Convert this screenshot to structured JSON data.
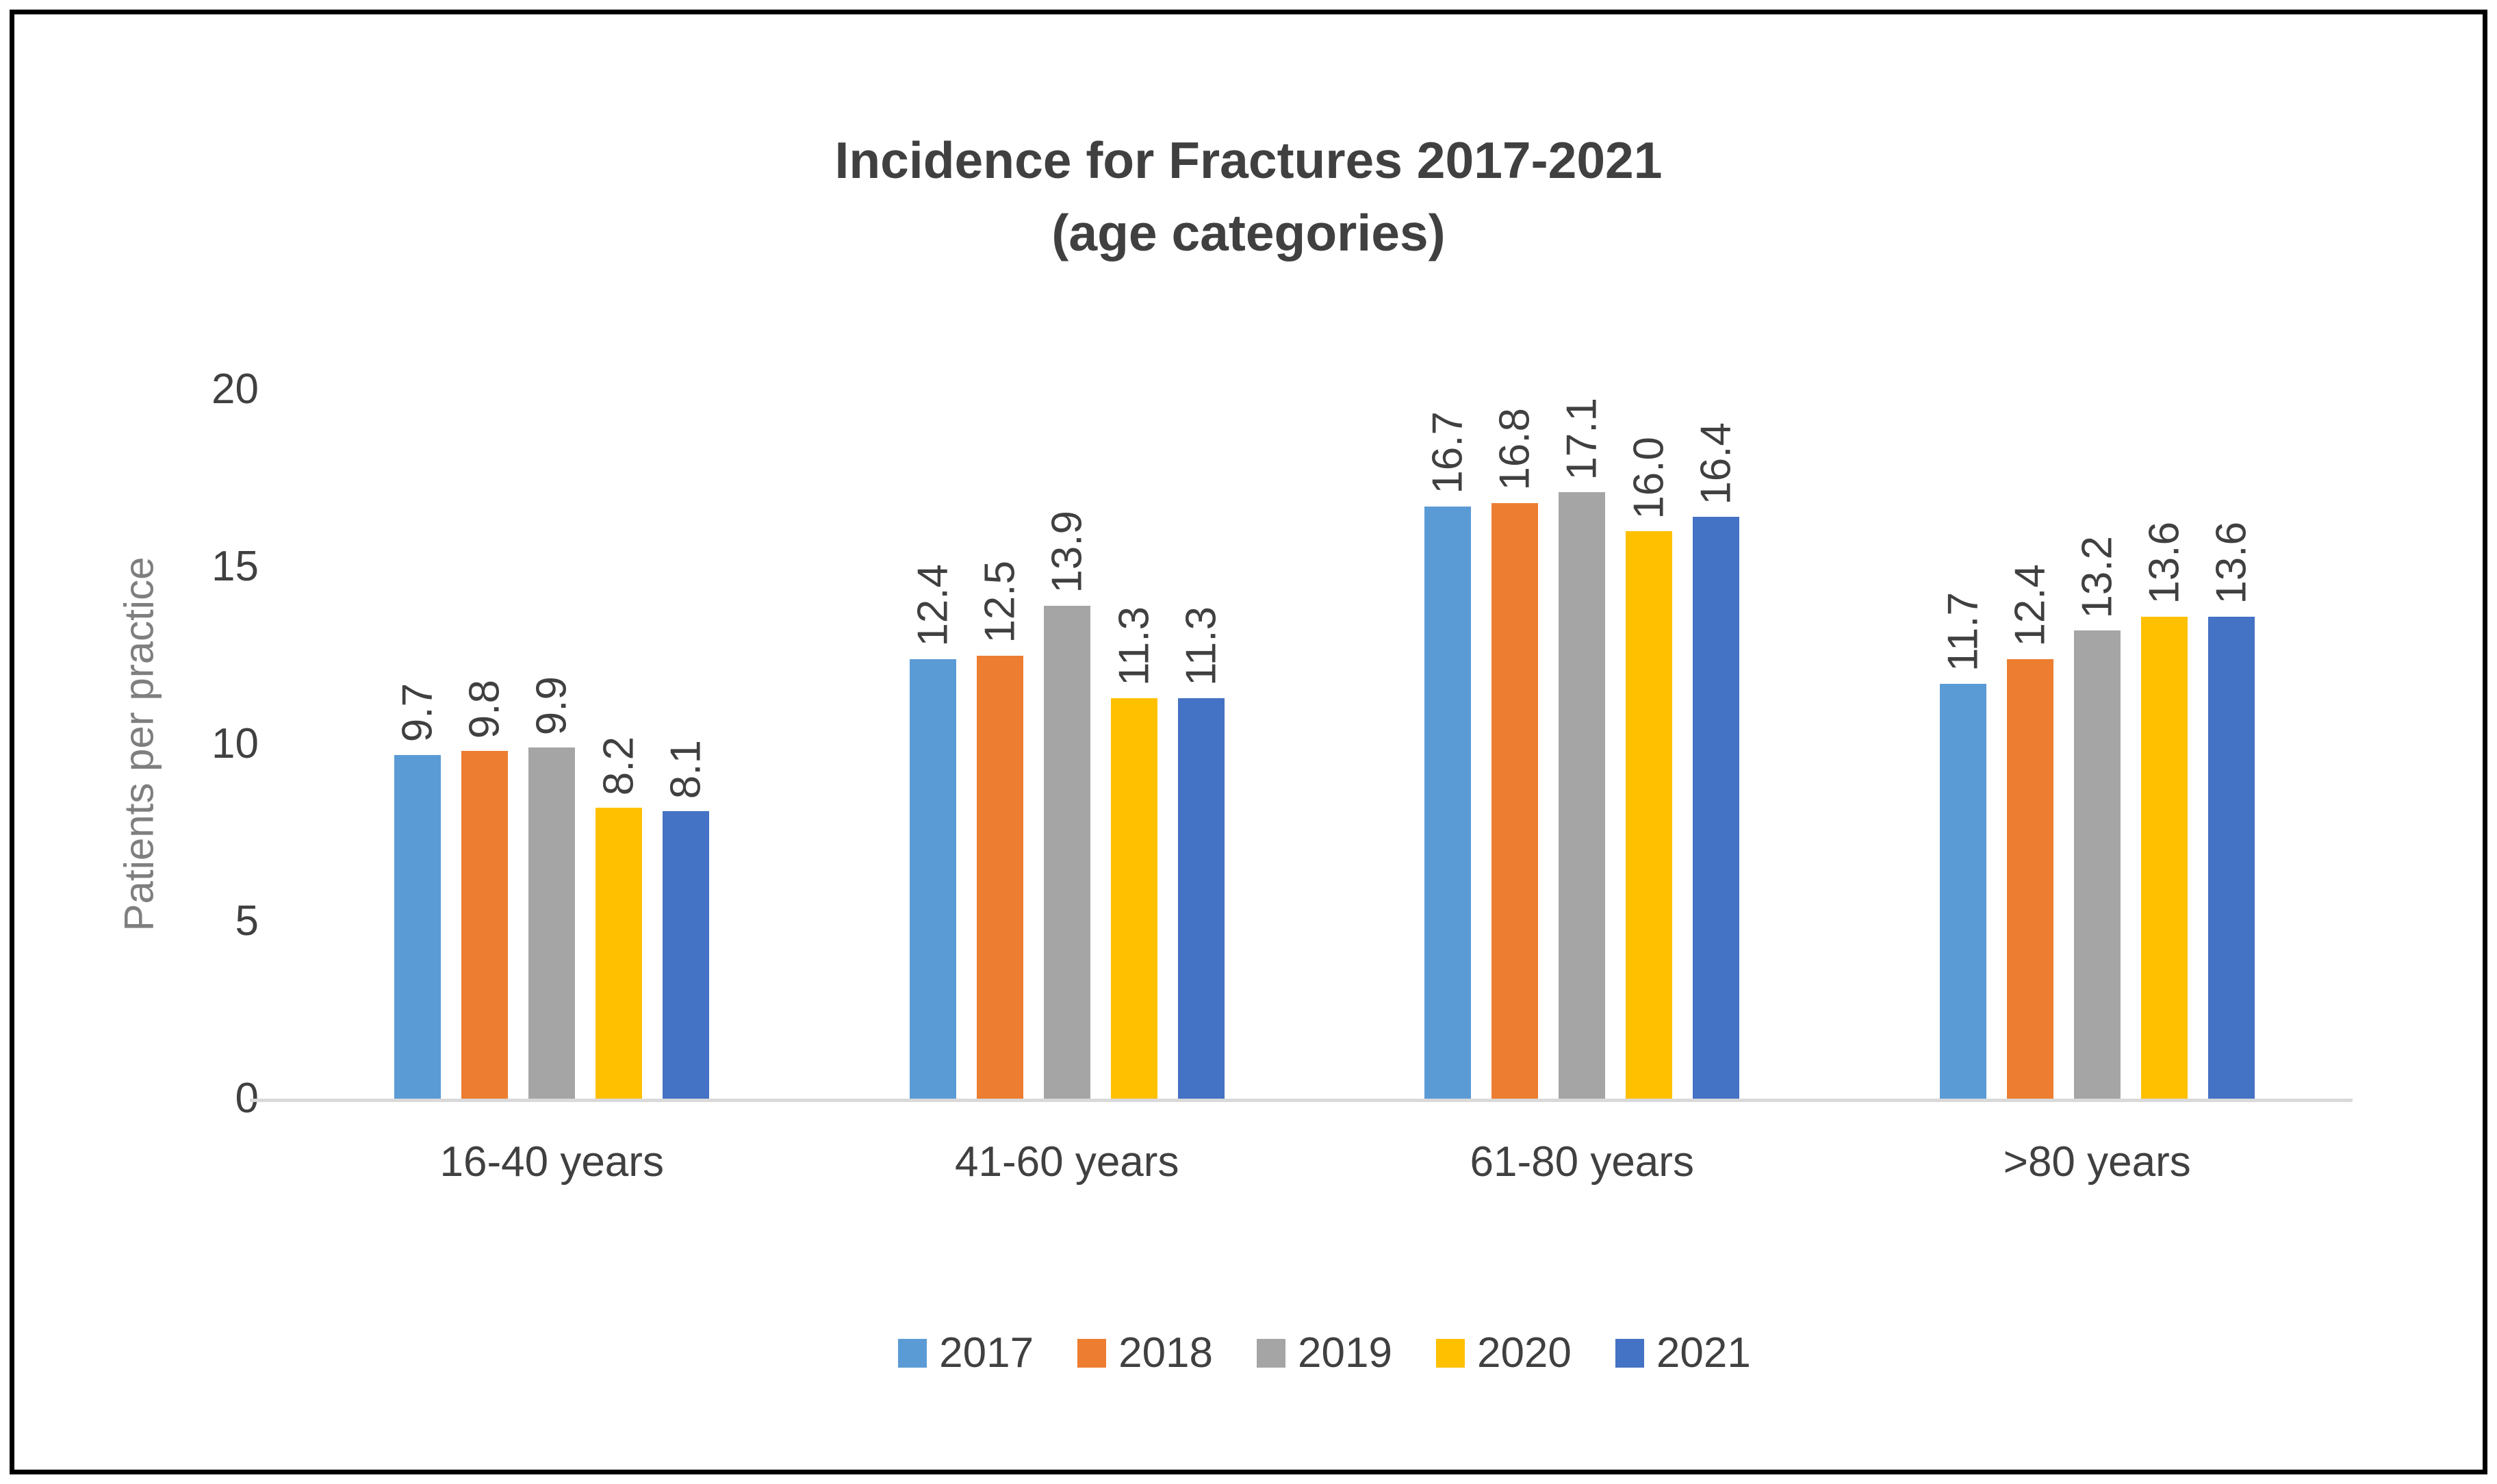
{
  "title": {
    "line1": "Incidence for Fractures 2017-2021",
    "line2": "(age categories)"
  },
  "chart_data": {
    "type": "bar",
    "categories": [
      "16-40 years",
      "41-60 years",
      "61-80 years",
      ">80 years"
    ],
    "series": [
      {
        "name": "2017",
        "color": "#5B9BD5",
        "values": [
          9.7,
          12.4,
          16.7,
          11.7
        ]
      },
      {
        "name": "2018",
        "color": "#ED7D31",
        "values": [
          9.8,
          12.5,
          16.8,
          12.4
        ]
      },
      {
        "name": "2019",
        "color": "#A5A5A5",
        "values": [
          9.9,
          13.9,
          17.1,
          13.2
        ]
      },
      {
        "name": "2020",
        "color": "#FFC000",
        "values": [
          8.2,
          11.3,
          16.0,
          13.6
        ]
      },
      {
        "name": "2021",
        "color": "#4472C4",
        "values": [
          8.1,
          11.3,
          16.4,
          13.6
        ]
      }
    ],
    "ylabel": "Patients per practice",
    "xlabel": "",
    "yticks": [
      0,
      5,
      10,
      15,
      20
    ],
    "ylim": [
      0,
      20
    ],
    "grid": false,
    "legend_position": "bottom",
    "data_label_decimals": 1,
    "data_labels_rotated": true
  }
}
